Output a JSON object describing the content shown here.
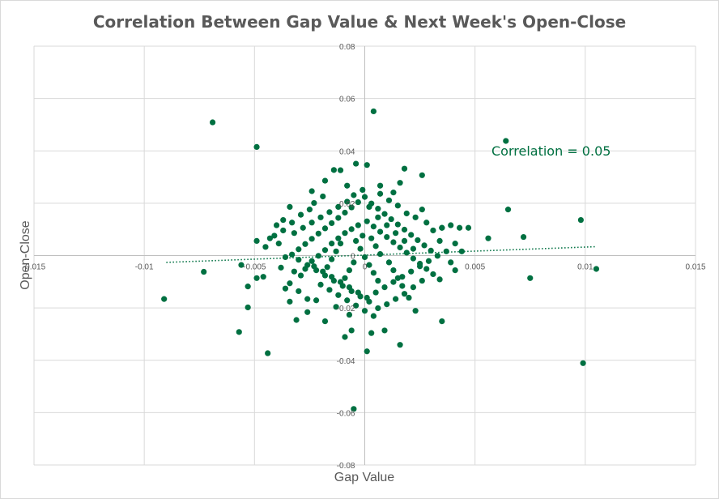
{
  "chart_data": {
    "type": "scatter",
    "title": "Correlation Between Gap Value & Next Week's Open-Close",
    "xlabel": "Gap Value",
    "ylabel": "Open-Close",
    "xlim": [
      -0.015,
      0.015
    ],
    "ylim": [
      -0.08,
      0.08
    ],
    "x_ticks": [
      -0.015,
      -0.01,
      -0.005,
      0,
      0.005,
      0.01,
      0.015
    ],
    "x_tick_labels": [
      "-0.015",
      "-0.01",
      "-0.005",
      "0",
      "0.005",
      "0.01",
      "0.015"
    ],
    "y_ticks": [
      0.08,
      0.06,
      0.04,
      0.02,
      0,
      -0.02,
      -0.04,
      -0.06,
      -0.08
    ],
    "y_tick_labels": [
      "0.08",
      "0.06",
      "0.04",
      "0.02",
      "0",
      "-0.02",
      "-0.04",
      "-0.06",
      "-0.08"
    ],
    "grid": true,
    "marker_color": "#007041",
    "trendline": {
      "style": "dotted",
      "from": [
        -0.009,
        -0.0026
      ],
      "to": [
        0.0105,
        0.0034
      ]
    },
    "annotation": "Correlation = 0.05",
    "points": [
      [
        -0.0069,
        0.0509
      ],
      [
        -0.0049,
        0.0415
      ],
      [
        0.0004,
        0.0551
      ],
      [
        0.0064,
        0.0438
      ],
      [
        -0.0091,
        -0.0166
      ],
      [
        -0.0073,
        -0.0062
      ],
      [
        -0.0057,
        -0.0292
      ],
      [
        -0.0044,
        -0.0373
      ],
      [
        -0.0053,
        -0.0198
      ],
      [
        -0.0053,
        -0.0118
      ],
      [
        -0.0056,
        -0.0036
      ],
      [
        -0.0049,
        -0.0086
      ],
      [
        -0.0049,
        0.0056
      ],
      [
        -0.0045,
        0.0033
      ],
      [
        -0.0046,
        -0.0081
      ],
      [
        -0.0036,
        -0.0006
      ],
      [
        -0.0041,
        0.0076
      ],
      [
        -0.0037,
        0.0136
      ],
      [
        -0.0034,
        0.0186
      ],
      [
        -0.0024,
        0.0246
      ],
      [
        -0.0018,
        0.0286
      ],
      [
        -0.0014,
        0.0327
      ],
      [
        -0.0011,
        0.0326
      ],
      [
        -0.0008,
        0.0267
      ],
      [
        -0.0004,
        0.0351
      ],
      [
        0.0001,
        0.0346
      ],
      [
        0.0007,
        0.0267
      ],
      [
        0.0016,
        0.0278
      ],
      [
        0.0018,
        0.0332
      ],
      [
        0.0026,
        0.0307
      ],
      [
        0.0035,
        0.0106
      ],
      [
        0.0039,
        0.0116
      ],
      [
        0.0043,
        0.0106
      ],
      [
        0.0047,
        0.0106
      ],
      [
        0.0056,
        0.0066
      ],
      [
        0.0065,
        0.0176
      ],
      [
        0.0072,
        0.0071
      ],
      [
        0.0075,
        -0.0086
      ],
      [
        0.0098,
        0.0136
      ],
      [
        0.0099,
        -0.0411
      ],
      [
        0.0105,
        -0.0051
      ],
      [
        0.0035,
        0.0106
      ],
      [
        0.0034,
        -0.0091
      ],
      [
        0.0035,
        -0.0251
      ],
      [
        0.0023,
        -0.0211
      ],
      [
        0.0016,
        -0.0341
      ],
      [
        0.0009,
        -0.0286
      ],
      [
        0.0003,
        -0.0296
      ],
      [
        0.0001,
        -0.0366
      ],
      [
        -0.0005,
        -0.0586
      ],
      [
        -0.0006,
        -0.0286
      ],
      [
        -0.0009,
        -0.0311
      ],
      [
        -0.0007,
        -0.0226
      ],
      [
        -0.0013,
        -0.0196
      ],
      [
        -0.0018,
        -0.0251
      ],
      [
        -0.0022,
        -0.0171
      ],
      [
        -0.0026,
        -0.0216
      ],
      [
        -0.0031,
        -0.0246
      ],
      [
        -0.0034,
        -0.0176
      ],
      [
        -0.0036,
        -0.0126
      ],
      [
        -0.0032,
        -0.0061
      ],
      [
        -0.0029,
        -0.0076
      ],
      [
        -0.0027,
        -0.0051
      ],
      [
        -0.0024,
        -0.0021
      ],
      [
        -0.0021,
        -0.0001
      ],
      [
        -0.0018,
        0.0021
      ],
      [
        -0.0015,
        0.0046
      ],
      [
        -0.0012,
        0.0066
      ],
      [
        -0.0009,
        0.0086
      ],
      [
        -0.0006,
        0.0101
      ],
      [
        -0.0003,
        0.0116
      ],
      [
        0.0001,
        0.0131
      ],
      [
        0.0004,
        0.0111
      ],
      [
        0.0007,
        0.0091
      ],
      [
        0.001,
        0.0071
      ],
      [
        0.0013,
        0.0051
      ],
      [
        0.0016,
        0.0031
      ],
      [
        0.0019,
        0.0011
      ],
      [
        0.0022,
        -0.0011
      ],
      [
        0.0025,
        -0.0031
      ],
      [
        0.0028,
        -0.0051
      ],
      [
        0.0031,
        -0.0071
      ],
      [
        0.0026,
        -0.0096
      ],
      [
        0.0022,
        -0.0121
      ],
      [
        0.0018,
        -0.0146
      ],
      [
        0.0014,
        -0.0166
      ],
      [
        0.001,
        -0.0186
      ],
      [
        0.0006,
        -0.0201
      ],
      [
        0.0002,
        -0.0176
      ],
      [
        -0.0002,
        -0.0156
      ],
      [
        -0.0006,
        -0.0136
      ],
      [
        -0.001,
        -0.0116
      ],
      [
        -0.0014,
        -0.0096
      ],
      [
        -0.0018,
        -0.0076
      ],
      [
        -0.0022,
        -0.0056
      ],
      [
        -0.0026,
        -0.0036
      ],
      [
        -0.003,
        -0.0016
      ],
      [
        -0.0033,
        0.0004
      ],
      [
        -0.003,
        0.0024
      ],
      [
        -0.0027,
        0.0044
      ],
      [
        -0.0024,
        0.0064
      ],
      [
        -0.0021,
        0.0084
      ],
      [
        -0.0018,
        0.0104
      ],
      [
        -0.0015,
        0.0124
      ],
      [
        -0.0012,
        0.0144
      ],
      [
        -0.0009,
        0.0164
      ],
      [
        -0.0006,
        0.0184
      ],
      [
        -0.0003,
        0.0204
      ],
      [
        0.0,
        0.0224
      ],
      [
        0.0003,
        0.0199
      ],
      [
        0.0006,
        0.0179
      ],
      [
        0.0009,
        0.0159
      ],
      [
        0.0012,
        0.0139
      ],
      [
        0.0015,
        0.0119
      ],
      [
        0.0018,
        0.0099
      ],
      [
        0.0021,
        0.0079
      ],
      [
        0.0024,
        0.0059
      ],
      [
        0.0027,
        0.0039
      ],
      [
        0.003,
        0.0019
      ],
      [
        0.0033,
        -0.0001
      ],
      [
        0.0029,
        -0.0021
      ],
      [
        0.0025,
        -0.0041
      ],
      [
        0.0021,
        -0.0061
      ],
      [
        0.0017,
        -0.0081
      ],
      [
        0.0013,
        -0.0101
      ],
      [
        0.0009,
        -0.0121
      ],
      [
        0.0005,
        -0.0141
      ],
      [
        0.0001,
        -0.0161
      ],
      [
        -0.0003,
        -0.0141
      ],
      [
        -0.0007,
        -0.0121
      ],
      [
        -0.0011,
        -0.0101
      ],
      [
        -0.0015,
        -0.0081
      ],
      [
        -0.0019,
        -0.0061
      ],
      [
        -0.0023,
        -0.0041
      ],
      [
        -0.002,
        -0.0111
      ],
      [
        -0.0016,
        -0.0131
      ],
      [
        -0.0012,
        -0.0151
      ],
      [
        -0.0008,
        -0.0171
      ],
      [
        -0.0004,
        -0.0191
      ],
      [
        0.0,
        -0.0211
      ],
      [
        0.0004,
        -0.0231
      ],
      [
        -0.0008,
        0.0206
      ],
      [
        -0.0012,
        0.0186
      ],
      [
        -0.0016,
        0.0166
      ],
      [
        -0.002,
        0.0146
      ],
      [
        -0.0024,
        0.0126
      ],
      [
        -0.0028,
        0.0106
      ],
      [
        -0.0032,
        0.0086
      ],
      [
        0.0002,
        0.0186
      ],
      [
        0.0006,
        0.0146
      ],
      [
        0.001,
        0.0116
      ],
      [
        0.0014,
        0.0086
      ],
      [
        0.0018,
        0.0056
      ],
      [
        0.0022,
        0.0026
      ],
      [
        -0.0004,
        0.0056
      ],
      [
        -0.0002,
        0.0026
      ],
      [
        0.0,
        -0.0006
      ],
      [
        0.0002,
        -0.0036
      ],
      [
        0.0004,
        -0.0066
      ],
      [
        0.0006,
        -0.0096
      ],
      [
        -0.0001,
        0.0076
      ],
      [
        0.0003,
        0.0066
      ],
      [
        0.0005,
        0.0036
      ],
      [
        0.0007,
        0.0006
      ],
      [
        -0.0005,
        -0.0026
      ],
      [
        -0.0007,
        -0.0056
      ],
      [
        -0.0009,
        -0.0086
      ],
      [
        -0.0011,
        0.0046
      ],
      [
        -0.0013,
        0.0016
      ],
      [
        -0.0015,
        -0.0014
      ],
      [
        -0.0017,
        -0.0044
      ],
      [
        0.0011,
        -0.0026
      ],
      [
        0.0013,
        -0.0056
      ],
      [
        0.0015,
        -0.0086
      ],
      [
        0.0017,
        -0.0116
      ],
      [
        0.0019,
        0.0161
      ],
      [
        0.0015,
        0.0191
      ],
      [
        0.0011,
        0.0211
      ],
      [
        0.0007,
        0.0236
      ],
      [
        -0.0001,
        0.0251
      ],
      [
        -0.0005,
        0.0231
      ],
      [
        -0.0025,
        0.0176
      ],
      [
        -0.0029,
        0.0156
      ],
      [
        -0.0033,
        0.0126
      ],
      [
        -0.0037,
        0.0096
      ],
      [
        -0.0039,
        0.0046
      ],
      [
        -0.0038,
        -0.0046
      ],
      [
        -0.0034,
        -0.0106
      ],
      [
        -0.003,
        -0.0136
      ],
      [
        -0.0026,
        -0.0166
      ],
      [
        0.0028,
        0.0126
      ],
      [
        0.0031,
        0.0096
      ],
      [
        0.0034,
        0.0056
      ],
      [
        0.0037,
        0.0016
      ],
      [
        0.0039,
        -0.0026
      ],
      [
        0.0041,
        -0.0056
      ],
      [
        0.0026,
        0.0176
      ],
      [
        0.0023,
        0.0146
      ],
      [
        0.002,
        -0.0161
      ],
      [
        -0.0019,
        0.0226
      ],
      [
        -0.0023,
        0.0201
      ],
      [
        0.0013,
        0.0241
      ],
      [
        -0.004,
        0.0116
      ],
      [
        -0.0043,
        0.0066
      ],
      [
        0.0044,
        0.0016
      ],
      [
        0.0041,
        0.0046
      ]
    ]
  }
}
